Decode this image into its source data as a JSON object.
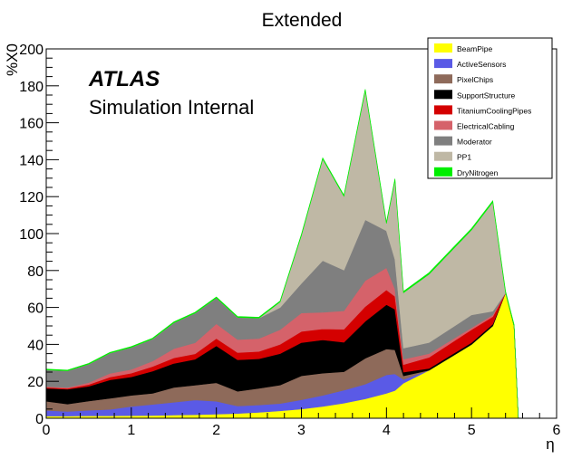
{
  "chart_data": {
    "type": "area",
    "stacked": true,
    "title": "Extended",
    "xlabel": "η",
    "ylabel": "%X0",
    "xlim": [
      0,
      6
    ],
    "ylim": [
      0,
      200
    ],
    "x_ticks": [
      "0",
      "1",
      "2",
      "3",
      "4",
      "5",
      "6"
    ],
    "y_ticks": [
      "0",
      "20",
      "40",
      "60",
      "80",
      "100",
      "120",
      "140",
      "160",
      "180",
      "200"
    ],
    "grid": false,
    "legend_position": "top-right",
    "annotation_bold": "ATLAS",
    "annotation": "Simulation Internal",
    "x": [
      0.0,
      0.25,
      0.5,
      0.75,
      1.0,
      1.25,
      1.5,
      1.75,
      2.0,
      2.25,
      2.5,
      2.75,
      3.0,
      3.25,
      3.5,
      3.75,
      4.0,
      4.1,
      4.2,
      4.5,
      5.0,
      5.25,
      5.4,
      5.5,
      5.55
    ],
    "series": [
      {
        "name": "BeamPipe",
        "color": "#ffff00",
        "values": [
          1.2,
          1.2,
          1.3,
          1.3,
          1.4,
          1.5,
          1.7,
          1.9,
          2.2,
          2.6,
          3.2,
          4.0,
          5.0,
          6.4,
          8.2,
          10.5,
          13.5,
          15,
          19,
          26,
          40,
          50,
          68,
          50,
          0
        ]
      },
      {
        "name": "ActiveSensors",
        "color": "#5a5ae6",
        "values": [
          3,
          2.5,
          3,
          3.5,
          5,
          6,
          7,
          8,
          7,
          4,
          4,
          4,
          5,
          6,
          7,
          8,
          10,
          9,
          2,
          0,
          0,
          0,
          0,
          0,
          0
        ]
      },
      {
        "name": "PixelChips",
        "color": "#8e6a5a",
        "values": [
          5,
          4,
          5,
          6,
          6,
          6,
          8,
          8,
          10,
          8,
          9,
          10,
          13,
          12,
          10,
          14,
          14,
          13,
          2,
          0,
          0,
          0,
          0,
          0,
          0
        ]
      },
      {
        "name": "SupportStructure",
        "color": "#000000",
        "values": [
          7,
          8,
          8,
          10,
          10,
          12,
          13,
          14,
          20,
          17,
          16,
          17,
          18,
          18,
          16,
          20,
          24,
          22,
          2,
          1,
          1,
          1,
          0,
          0,
          0
        ]
      },
      {
        "name": "TitaniumCoolingPipes",
        "color": "#d40000",
        "values": [
          0.5,
          0.5,
          1,
          1.5,
          2,
          2.5,
          3,
          3,
          4,
          4,
          4,
          5,
          6,
          6,
          7,
          8,
          8,
          7,
          4,
          6,
          7,
          4,
          0,
          0,
          0
        ]
      },
      {
        "name": "ElectricalCabling",
        "color": "#d5626a",
        "values": [
          0.5,
          0.5,
          1,
          2,
          2,
          3,
          5,
          6,
          8,
          7,
          7,
          8,
          10,
          9,
          10,
          14,
          12,
          4,
          3,
          2,
          1,
          1,
          0,
          0,
          0
        ]
      },
      {
        "name": "Moderator",
        "color": "#7f7f7f",
        "values": [
          9,
          9,
          10,
          11,
          12,
          12,
          14,
          16,
          14,
          12,
          11,
          12,
          16,
          28,
          22,
          33,
          20,
          16,
          6,
          6,
          7,
          2,
          0,
          0,
          0
        ]
      },
      {
        "name": "PP1",
        "color": "#bfb8a5",
        "values": [
          0,
          0,
          0,
          0,
          0,
          0,
          0,
          0,
          0,
          0,
          0,
          3,
          26,
          55,
          40,
          70,
          4,
          43,
          30,
          37,
          46,
          59,
          0,
          0,
          0
        ]
      },
      {
        "name": "DryNitrogen",
        "color": "#00ee00",
        "values": [
          0.4,
          0.4,
          0.4,
          0.4,
          0.4,
          0.4,
          0.5,
          0.5,
          0.5,
          0.5,
          0.5,
          0.5,
          0.6,
          0.6,
          0.6,
          0.7,
          0.7,
          0.7,
          0.7,
          0.8,
          0.8,
          0.8,
          0.8,
          0.8,
          0
        ]
      }
    ]
  }
}
